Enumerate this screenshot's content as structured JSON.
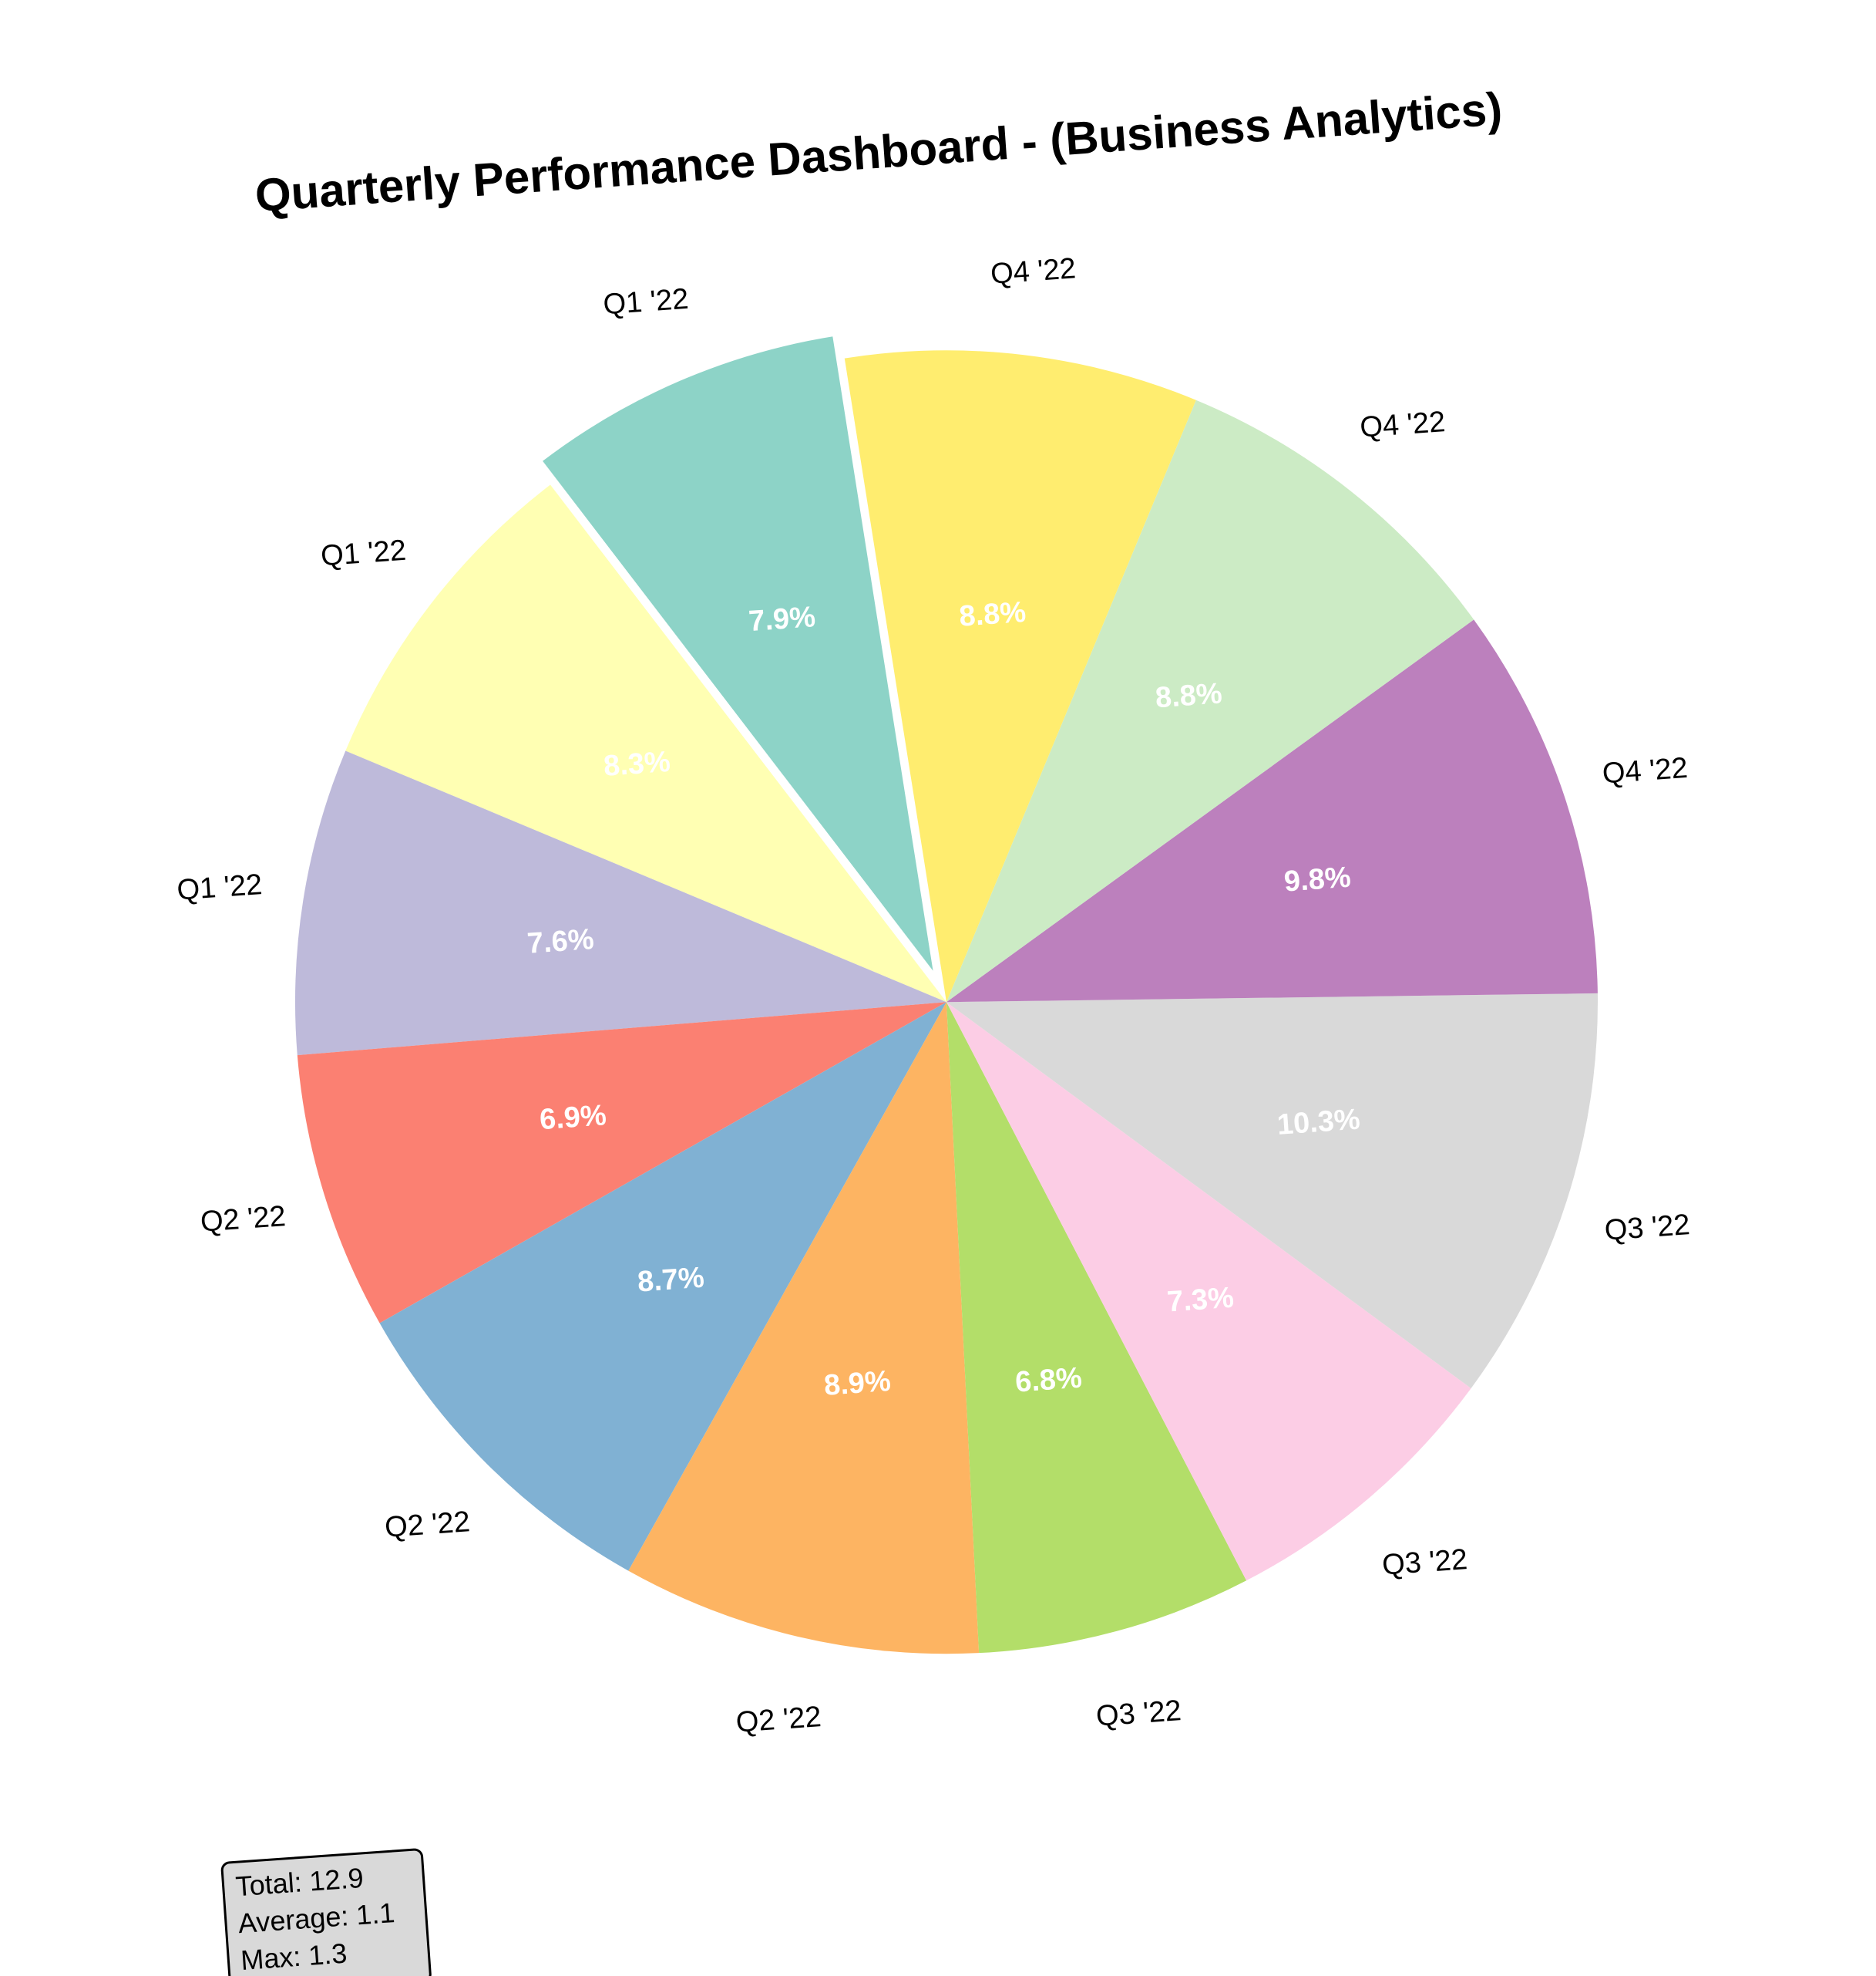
{
  "chart_data": {
    "type": "pie",
    "title": "Quarterly Performance Dashboard - (Business Analytics)",
    "start_angle_deg": 95,
    "direction": "counterclockwise",
    "slices": [
      {
        "label": "Q1 '22",
        "value": 1.02,
        "percent_label": "7.9%",
        "color": "#8DD3C7",
        "exploded": true
      },
      {
        "label": "Q1 '22",
        "value": 1.07,
        "percent_label": "8.3%",
        "color": "#FFFFB3",
        "exploded": false
      },
      {
        "label": "Q1 '22",
        "value": 0.98,
        "percent_label": "7.6%",
        "color": "#BEBADA",
        "exploded": false
      },
      {
        "label": "Q2 '22",
        "value": 0.89,
        "percent_label": "6.9%",
        "color": "#FB8072",
        "exploded": false
      },
      {
        "label": "Q2 '22",
        "value": 1.12,
        "percent_label": "8.7%",
        "color": "#80B1D3",
        "exploded": false
      },
      {
        "label": "Q2 '22",
        "value": 1.15,
        "percent_label": "8.9%",
        "color": "#FDB462",
        "exploded": false
      },
      {
        "label": "Q3 '22",
        "value": 0.88,
        "percent_label": "6.8%",
        "color": "#B3DE69",
        "exploded": false
      },
      {
        "label": "Q3 '22",
        "value": 0.94,
        "percent_label": "7.3%",
        "color": "#FCCDE5",
        "exploded": false
      },
      {
        "label": "Q3 '22",
        "value": 1.33,
        "percent_label": "10.3%",
        "color": "#D9D9D9",
        "exploded": false
      },
      {
        "label": "Q4 '22",
        "value": 1.26,
        "percent_label": "9.8%",
        "color": "#BC80BD",
        "exploded": false
      },
      {
        "label": "Q4 '22",
        "value": 1.13,
        "percent_label": "8.8%",
        "color": "#CCEBC5",
        "exploded": false
      },
      {
        "label": "Q4 '22",
        "value": 1.13,
        "percent_label": "8.8%",
        "color": "#FFED6F",
        "exploded": false
      }
    ],
    "stats_box": {
      "lines": [
        "Total: 12.9",
        "Average: 1.1",
        "Max: 1.3"
      ],
      "background": "#D9D9D9"
    }
  }
}
